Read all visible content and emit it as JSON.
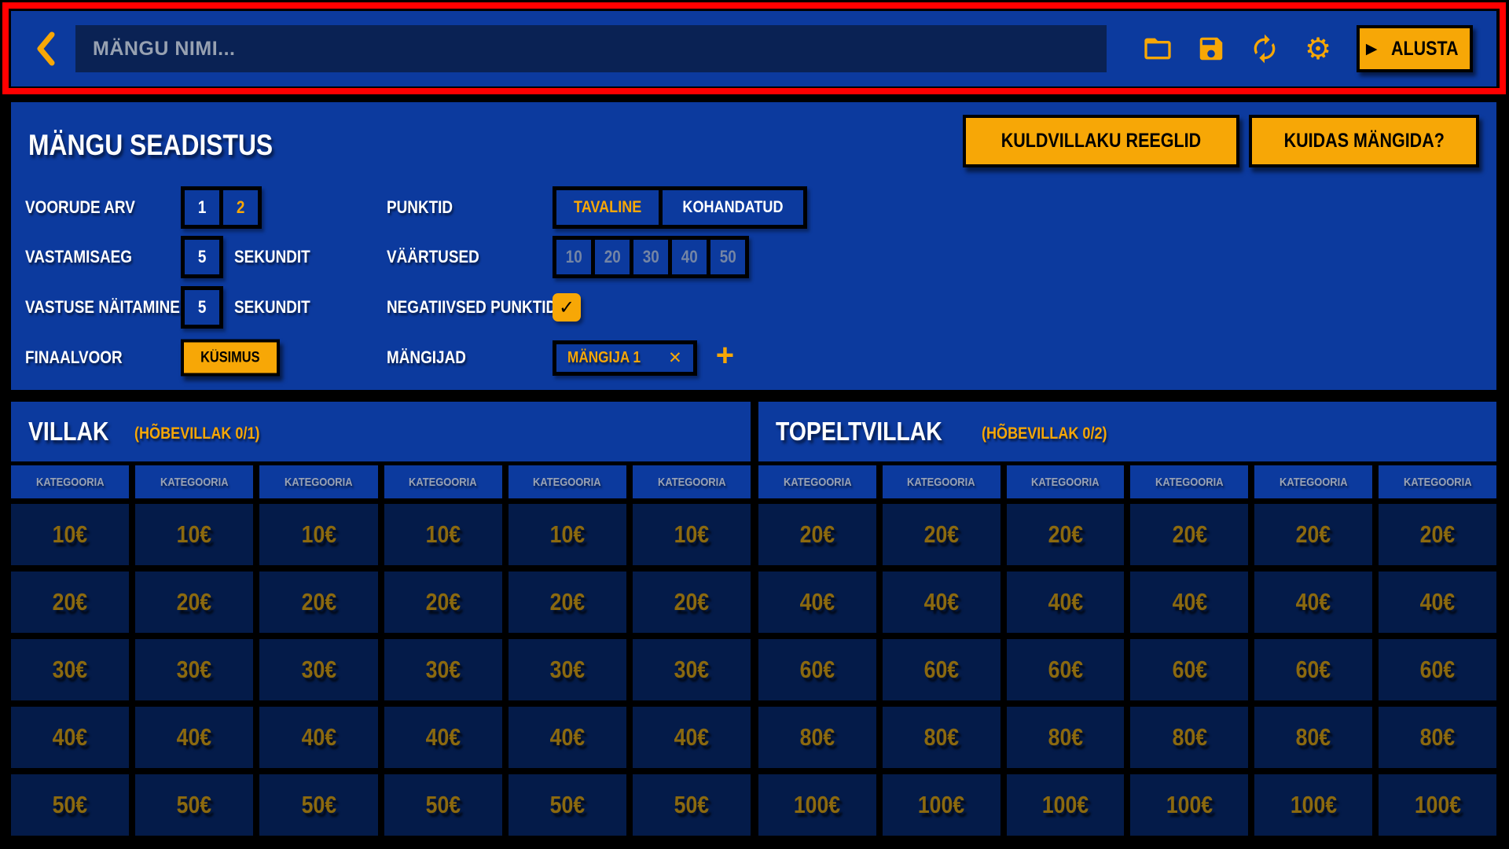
{
  "colors": {
    "background": "#000000",
    "panel_blue": "#0C3A9E",
    "cell_navy": "#041B49",
    "input_navy": "#0A2254",
    "accent_orange": "#F7A706",
    "value_dim_gold": "#8B690F",
    "muted_number": "#7485A5",
    "category_gray": "#9AA3B4",
    "highlight_red": "#FF0000"
  },
  "topbar": {
    "game_name_placeholder": "MÄNGU NIMI...",
    "icons": {
      "back": "chevron-left",
      "open": "folder-open",
      "save": "floppy-disk",
      "reload": "sync-arrows",
      "settings_glyph": "⚙"
    },
    "start": {
      "icon_glyph": "▶",
      "label": "ALUSTA"
    }
  },
  "settings": {
    "title": "MÄNGU SEADISTUS",
    "rules_button": "KULDVILLAKU REEGLID",
    "howto_button": "KUIDAS MÄNGIDA?",
    "voorude_arv": {
      "label": "VOORUDE ARV",
      "options": [
        "1",
        "2"
      ],
      "selected": "2"
    },
    "vastamisaeg": {
      "label": "VASTAMISAEG",
      "value": "5",
      "unit": "SEKUNDIT"
    },
    "vastuse_naitamine": {
      "label": "VASTUSE NÄITAMINE",
      "value": "5",
      "unit": "SEKUNDIT"
    },
    "finaalvoor": {
      "label": "FINAALVOOR",
      "value": "KÜSIMUS"
    },
    "punktid": {
      "label": "PUNKTID",
      "options": [
        "TAVALINE",
        "KOHANDATUD"
      ],
      "selected": "TAVALINE"
    },
    "vaartused": {
      "label": "VÄÄRTUSED",
      "values": [
        "10",
        "20",
        "30",
        "40",
        "50"
      ]
    },
    "negatiivsed_punktid": {
      "label": "NEGATIIVSED PUNKTID",
      "checked": true,
      "check_glyph": "✓"
    },
    "mangijad": {
      "label": "MÄNGIJAD",
      "players": [
        "MÄNGIJA 1"
      ],
      "remove_glyph": "✕",
      "add_glyph": "+"
    }
  },
  "boards": [
    {
      "title": "VILLAK",
      "subtitle": "(HÕBEVILLAK 0/1)",
      "columns": 6,
      "category_placeholder": "KATEGOORIA",
      "values": [
        "10€",
        "20€",
        "30€",
        "40€",
        "50€"
      ]
    },
    {
      "title": "TOPELTVILLAK",
      "subtitle": "(HÕBEVILLAK 0/2)",
      "columns": 6,
      "category_placeholder": "KATEGOORIA",
      "values": [
        "20€",
        "40€",
        "60€",
        "80€",
        "100€"
      ]
    }
  ]
}
